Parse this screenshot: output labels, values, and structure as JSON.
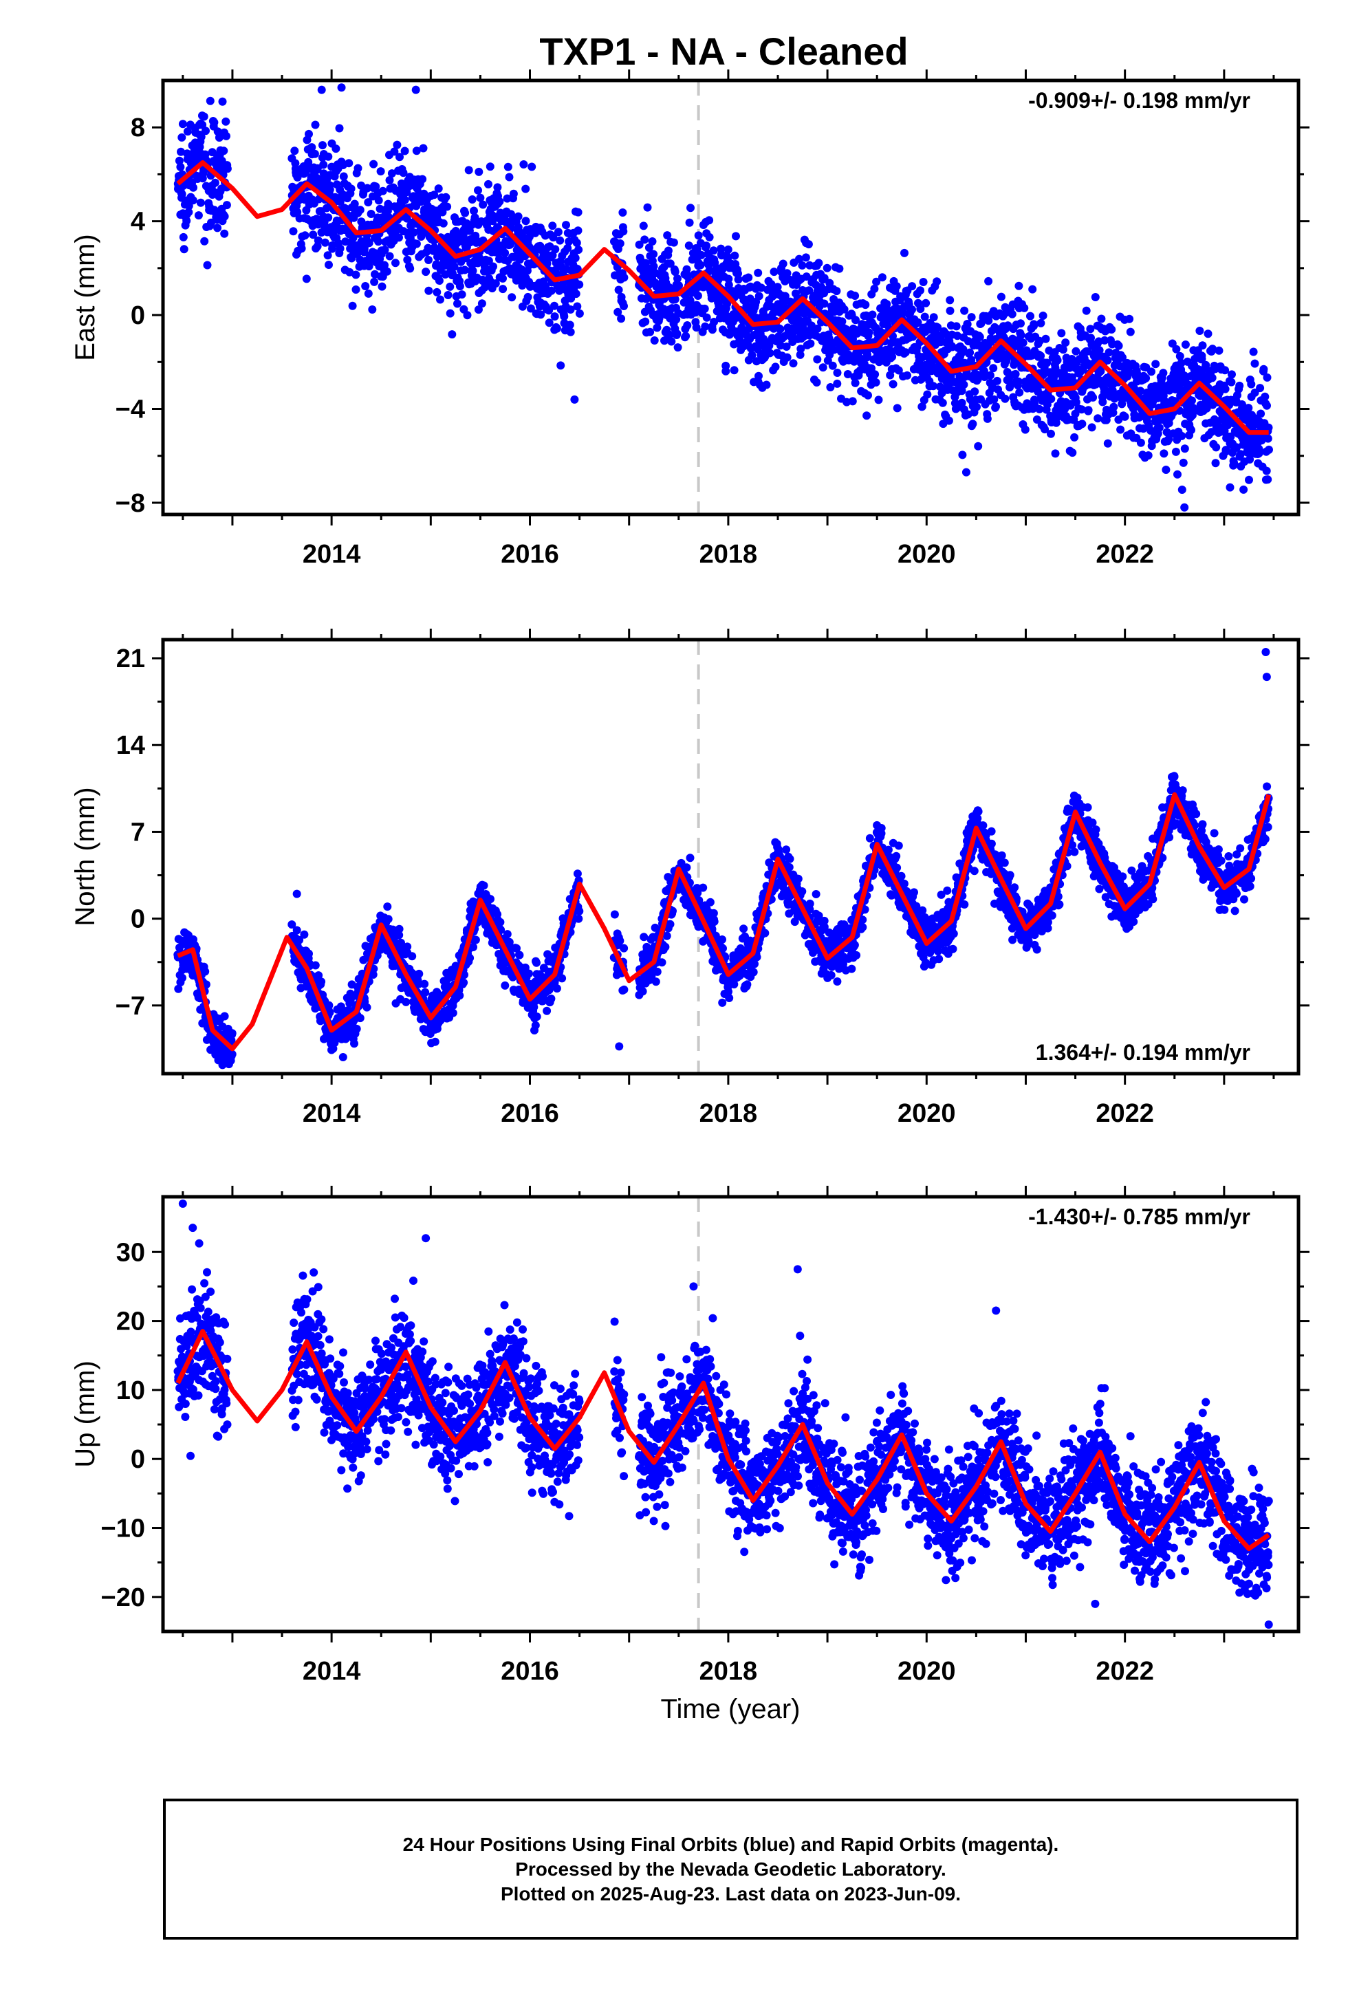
{
  "title": "TXP1  - NA - Cleaned",
  "x_axis_label": "Time (year)",
  "footer": {
    "line1": "24 Hour Positions Using Final Orbits (blue) and Rapid Orbits (magenta).",
    "line2": "Processed by the Nevada Geodetic Laboratory.",
    "line3": "Plotted on 2025-Aug-23. Last data on 2023-Jun-09."
  },
  "colors": {
    "points": "#0000ff",
    "model": "#ff0000",
    "vline": "#c8c8c8"
  },
  "chart_data": [
    {
      "type": "scatter",
      "ylabel": "East (mm)",
      "rate_label": "-0.909+/- 0.198 mm/yr",
      "rate_position": "top-right",
      "x_ticks": [
        2014,
        2016,
        2018,
        2020,
        2022
      ],
      "y_ticks": [
        -8,
        -4,
        0,
        4,
        8
      ],
      "xlim": [
        2012.3,
        2023.75
      ],
      "ylim": [
        -8.5,
        10
      ],
      "vline_x": 2017.7,
      "model_curve": {
        "x": [
          2012.45,
          2012.7,
          2013.0,
          2013.25,
          2013.5,
          2013.75,
          2014.0,
          2014.25,
          2014.5,
          2014.75,
          2015.0,
          2015.25,
          2015.5,
          2015.75,
          2016.0,
          2016.25,
          2016.5,
          2016.75,
          2017.0,
          2017.25,
          2017.5,
          2017.75,
          2018.0,
          2018.25,
          2018.5,
          2018.75,
          2019.0,
          2019.25,
          2019.5,
          2019.75,
          2020.0,
          2020.25,
          2020.5,
          2020.75,
          2021.0,
          2021.25,
          2021.5,
          2021.75,
          2022.0,
          2022.25,
          2022.5,
          2022.75,
          2023.0,
          2023.25,
          2023.45
        ],
        "y": [
          5.6,
          6.5,
          5.4,
          4.2,
          4.5,
          5.6,
          4.8,
          3.5,
          3.6,
          4.5,
          3.6,
          2.5,
          2.8,
          3.7,
          2.6,
          1.5,
          1.7,
          2.8,
          1.9,
          0.8,
          0.9,
          1.8,
          0.8,
          -0.4,
          -0.3,
          0.7,
          -0.3,
          -1.4,
          -1.3,
          -0.2,
          -1.2,
          -2.4,
          -2.2,
          -1.1,
          -2.1,
          -3.2,
          -3.1,
          -2.0,
          -3.0,
          -4.2,
          -4.0,
          -2.9,
          -3.9,
          -5.0,
          -5.0
        ]
      },
      "data_segments": [
        [
          2012.45,
          2012.95
        ],
        [
          2013.6,
          2015.6
        ],
        [
          2015.6,
          2016.5
        ],
        [
          2016.85,
          2016.95
        ],
        [
          2017.1,
          2017.5
        ],
        [
          2017.55,
          2018.05
        ],
        [
          2018.05,
          2023.45
        ]
      ],
      "scatter_noise": 1.2,
      "outliers": [
        [
          2012.9,
          9.1
        ],
        [
          2013.9,
          9.6
        ],
        [
          2014.1,
          9.7
        ],
        [
          2014.85,
          9.6
        ],
        [
          2016.45,
          -3.6
        ],
        [
          2020.4,
          -6.7
        ],
        [
          2022.6,
          -8.2
        ]
      ]
    },
    {
      "type": "scatter",
      "ylabel": "North (mm)",
      "rate_label": "1.364+/- 0.194 mm/yr",
      "rate_position": "bottom-right",
      "x_ticks": [
        2014,
        2016,
        2018,
        2020,
        2022
      ],
      "y_ticks": [
        -7,
        0,
        7,
        14,
        21
      ],
      "xlim": [
        2012.3,
        2023.75
      ],
      "ylim": [
        -12.5,
        22.5
      ],
      "vline_x": 2017.7,
      "model_curve": {
        "x": [
          2012.45,
          2012.6,
          2012.8,
          2013.0,
          2013.2,
          2013.4,
          2013.55,
          2013.75,
          2014.0,
          2014.25,
          2014.5,
          2014.75,
          2015.0,
          2015.25,
          2015.5,
          2015.75,
          2016.0,
          2016.25,
          2016.5,
          2016.75,
          2017.0,
          2017.25,
          2017.5,
          2017.75,
          2018.0,
          2018.25,
          2018.5,
          2018.75,
          2019.0,
          2019.25,
          2019.5,
          2019.75,
          2020.0,
          2020.25,
          2020.5,
          2020.75,
          2021.0,
          2021.25,
          2021.5,
          2021.75,
          2022.0,
          2022.25,
          2022.5,
          2022.75,
          2023.0,
          2023.25,
          2023.45
        ],
        "y": [
          -3.0,
          -2.5,
          -9.0,
          -10.5,
          -8.5,
          -4.5,
          -1.5,
          -4.0,
          -9.0,
          -7.5,
          -0.5,
          -4.5,
          -8.0,
          -5.5,
          1.5,
          -2.5,
          -6.5,
          -4.5,
          2.8,
          -0.8,
          -5.0,
          -3.5,
          4.0,
          -0.2,
          -4.5,
          -2.8,
          4.8,
          0.8,
          -3.2,
          -1.5,
          6.0,
          2.0,
          -2.0,
          -0.2,
          7.3,
          3.2,
          -0.8,
          1.2,
          8.6,
          4.5,
          0.8,
          2.8,
          10.0,
          5.8,
          2.5,
          4.0,
          10.0
        ]
      },
      "data_segments": [
        [
          2012.45,
          2013.0
        ],
        [
          2013.6,
          2016.5
        ],
        [
          2016.85,
          2016.95
        ],
        [
          2017.1,
          2018.05
        ],
        [
          2018.05,
          2023.45
        ]
      ],
      "scatter_noise": 1.0,
      "outliers": [
        [
          2023.42,
          21.5
        ],
        [
          2023.43,
          19.5
        ],
        [
          2012.9,
          -11.8
        ],
        [
          2016.9,
          -10.3
        ],
        [
          2013.65,
          2.0
        ]
      ]
    },
    {
      "type": "scatter",
      "ylabel": "Up (mm)",
      "rate_label": "-1.430+/- 0.785 mm/yr",
      "rate_position": "top-right",
      "x_ticks": [
        2014,
        2016,
        2018,
        2020,
        2022
      ],
      "y_ticks": [
        -20,
        -10,
        0,
        10,
        20,
        30
      ],
      "xlim": [
        2012.3,
        2023.75
      ],
      "ylim": [
        -25,
        38
      ],
      "vline_x": 2017.7,
      "model_curve": {
        "x": [
          2012.45,
          2012.7,
          2013.0,
          2013.25,
          2013.5,
          2013.75,
          2014.0,
          2014.25,
          2014.5,
          2014.75,
          2015.0,
          2015.25,
          2015.5,
          2015.75,
          2016.0,
          2016.25,
          2016.5,
          2016.75,
          2017.0,
          2017.25,
          2017.5,
          2017.75,
          2018.0,
          2018.25,
          2018.5,
          2018.75,
          2019.0,
          2019.25,
          2019.5,
          2019.75,
          2020.0,
          2020.25,
          2020.5,
          2020.75,
          2021.0,
          2021.25,
          2021.5,
          2021.75,
          2022.0,
          2022.25,
          2022.5,
          2022.75,
          2023.0,
          2023.25,
          2023.45
        ],
        "y": [
          11,
          18.5,
          10,
          5.5,
          10,
          17,
          9,
          4,
          9,
          15.5,
          7.5,
          2.5,
          7,
          14,
          6,
          1.5,
          6,
          12.5,
          4,
          -0.5,
          5,
          11,
          0,
          -6,
          -1,
          5,
          -3.5,
          -8,
          -3,
          3.5,
          -5,
          -9,
          -4,
          2.5,
          -6.5,
          -10.5,
          -5,
          1,
          -8,
          -12,
          -7,
          -0.5,
          -9,
          -13,
          -11
        ]
      },
      "data_segments": [
        [
          2012.45,
          2012.95
        ],
        [
          2013.6,
          2016.5
        ],
        [
          2016.85,
          2016.95
        ],
        [
          2017.1,
          2018.05
        ],
        [
          2018.05,
          2023.45
        ]
      ],
      "scatter_noise": 4.0,
      "outliers": [
        [
          2012.5,
          37
        ],
        [
          2012.6,
          33.5
        ],
        [
          2014.95,
          32
        ],
        [
          2017.65,
          25
        ],
        [
          2018.7,
          27.5
        ],
        [
          2020.7,
          21.5
        ],
        [
          2021.7,
          -21
        ],
        [
          2023.45,
          -24
        ]
      ]
    }
  ]
}
